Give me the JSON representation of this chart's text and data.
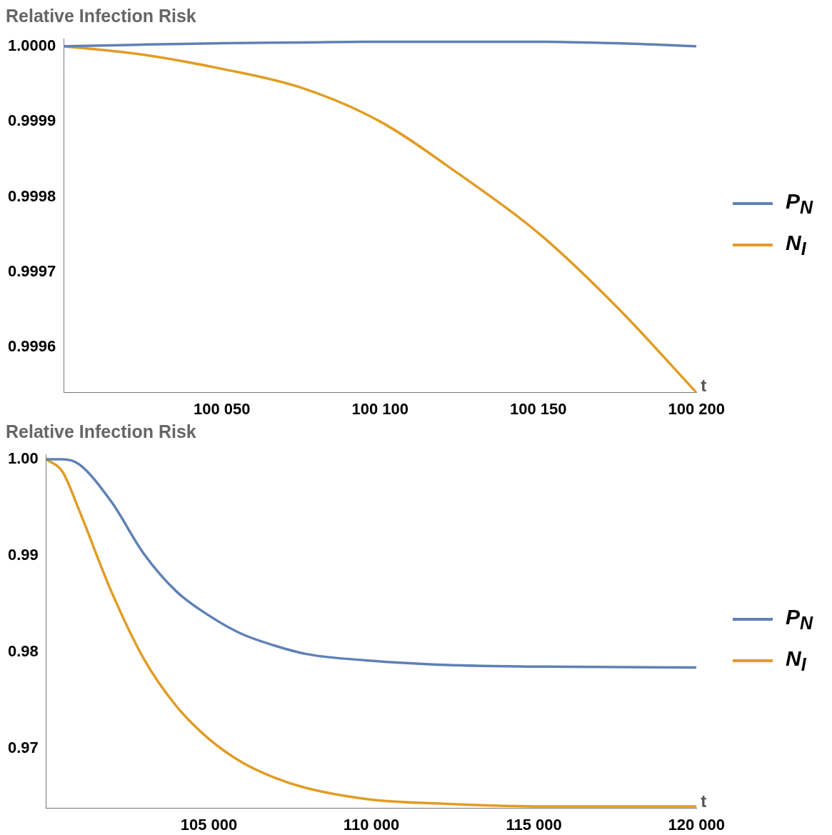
{
  "chart_data": [
    {
      "type": "line",
      "ylabel": "Relative Infection Risk",
      "xlabel": "t",
      "x": [
        100000,
        100023,
        100050,
        100075,
        100100,
        100125,
        100150,
        100175,
        100200
      ],
      "xlim": [
        100000,
        100200
      ],
      "xticks": [
        {
          "value": 100050,
          "label": "100 050"
        },
        {
          "value": 100100,
          "label": "100 100"
        },
        {
          "value": 100150,
          "label": "100 150"
        },
        {
          "value": 100200,
          "label": "100 200"
        }
      ],
      "ylim": [
        0.99954,
        1.00001
      ],
      "yticks": [
        {
          "value": 0.9996,
          "label": "0.9996"
        },
        {
          "value": 0.9997,
          "label": "0.9997"
        },
        {
          "value": 0.9998,
          "label": "0.9998"
        },
        {
          "value": 0.9999,
          "label": "0.9999"
        },
        {
          "value": 1,
          "label": "1.0000"
        }
      ],
      "grid": false,
      "legend": "right",
      "marker": "none",
      "line_style": "solid",
      "series": [
        {
          "name": "P$_{N}$",
          "color": "#5e81b5",
          "values": [
            1,
            1.000002,
            1.000004,
            1.000005,
            1.000006,
            1.000006,
            1.000006,
            1.000004,
            1
          ]
        },
        {
          "name": "N$_{I}$",
          "color": "#e19c24",
          "values": [
            1,
            0.99999,
            0.99997,
            0.999945,
            0.9999,
            0.99983,
            0.999752,
            0.999653,
            0.99954
          ]
        }
      ]
    },
    {
      "type": "line",
      "ylabel": "Relative Infection Risk",
      "xlabel": "t",
      "x": [
        100000,
        100500,
        101000,
        102000,
        103000,
        104000,
        105000,
        106000,
        107000,
        108000,
        110000,
        112000,
        115000,
        120000
      ],
      "xlim": [
        100000,
        120000
      ],
      "xticks": [
        {
          "value": 105000,
          "label": "105 000"
        },
        {
          "value": 110000,
          "label": "110 000"
        },
        {
          "value": 115000,
          "label": "115 000"
        },
        {
          "value": 120000,
          "label": "120 000"
        }
      ],
      "ylim": [
        0.9638,
        1.0005
      ],
      "yticks": [
        0.97,
        0.98,
        0.99,
        {
          "value": 1,
          "label": "1.00"
        }
      ],
      "grid": false,
      "legend": "right",
      "marker": "none",
      "line_style": "solid",
      "series": [
        {
          "name": "P$_{N}$",
          "color": "#5e81b5",
          "values": [
            1,
            1,
            0.9995,
            0.9956,
            0.9902,
            0.9863,
            0.9838,
            0.9819,
            0.9807,
            0.9798,
            0.9791,
            0.9787,
            0.9785,
            0.9784
          ]
        },
        {
          "name": "N$_{I}$",
          "color": "#e19c24",
          "values": [
            1,
            0.9987,
            0.9948,
            0.9863,
            0.9793,
            0.9744,
            0.971,
            0.9686,
            0.967,
            0.9659,
            0.9647,
            0.9643,
            0.964,
            0.964
          ]
        }
      ]
    }
  ]
}
